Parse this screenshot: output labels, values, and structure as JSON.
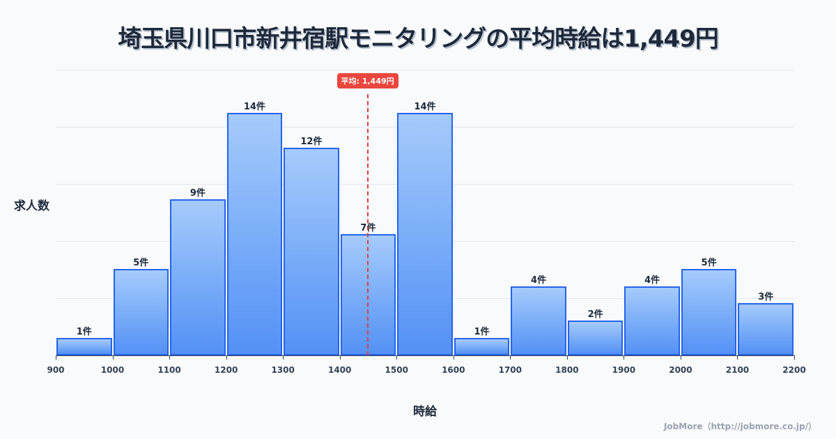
{
  "title": "埼玉県川口市新井宿駅モニタリングの平均時給は1,449円",
  "mean_badge": "平均: 1,449円",
  "ylabel": "求人数",
  "xlabel": "時給",
  "credit": "JobMore（http://jobmore.co.jp/）",
  "colors": {
    "bar_fill_top": "#a5cbfb",
    "bar_fill_bottom": "#5391f5",
    "bar_border": "#2563eb",
    "mean_line": "#e23c3c"
  },
  "chart_data": {
    "type": "bar",
    "title": "埼玉県川口市新井宿駅モニタリングの平均時給は1,449円",
    "xlabel": "時給",
    "ylabel": "求人数",
    "bins": [
      [
        900,
        1000
      ],
      [
        1000,
        1100
      ],
      [
        1100,
        1200
      ],
      [
        1200,
        1300
      ],
      [
        1300,
        1400
      ],
      [
        1400,
        1500
      ],
      [
        1500,
        1600
      ],
      [
        1600,
        1700
      ],
      [
        1700,
        1800
      ],
      [
        1800,
        1900
      ],
      [
        1900,
        2000
      ],
      [
        2000,
        2100
      ],
      [
        2100,
        2200
      ]
    ],
    "categories": [
      "900-1000",
      "1000-1100",
      "1100-1200",
      "1200-1300",
      "1300-1400",
      "1400-1500",
      "1500-1600",
      "1600-1700",
      "1700-1800",
      "1800-1900",
      "1900-2000",
      "2000-2100",
      "2100-2200"
    ],
    "values": [
      1,
      5,
      9,
      14,
      12,
      7,
      14,
      1,
      4,
      2,
      4,
      5,
      3
    ],
    "value_labels": [
      "1件",
      "5件",
      "9件",
      "14件",
      "12件",
      "7件",
      "14件",
      "1件",
      "4件",
      "2件",
      "4件",
      "5件",
      "3件"
    ],
    "x_ticks": [
      "900",
      "1000",
      "1100",
      "1200",
      "1300",
      "1400",
      "1500",
      "1600",
      "1700",
      "1800",
      "1900",
      "2000",
      "2100",
      "2200"
    ],
    "mean": 1449,
    "mean_label": "平均: 1,449円",
    "grid": true,
    "xlim": [
      900,
      2200
    ],
    "ylim": [
      0,
      16.5
    ]
  }
}
